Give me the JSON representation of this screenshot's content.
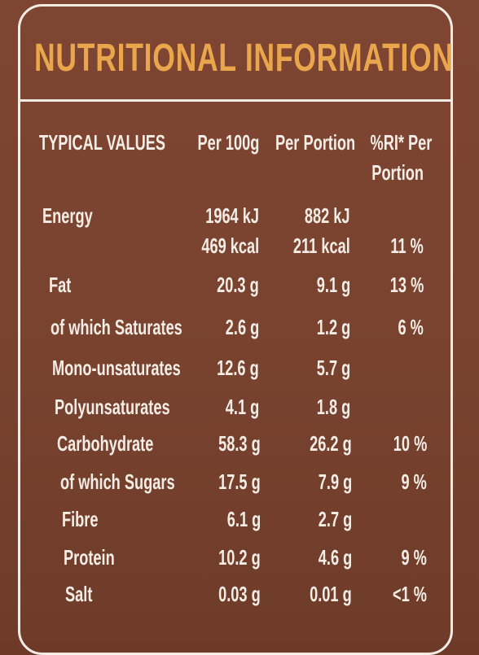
{
  "header": {
    "title": "NUTRITIONAL INFORMATION"
  },
  "table": {
    "columns": [
      "TYPICAL VALUES",
      "Per 100g",
      "Per Portion"
    ],
    "ri_header": [
      "%RI* Per",
      "Portion"
    ],
    "rows": [
      [
        "Energy",
        "1964 kJ",
        "882 kJ",
        null
      ],
      [
        null,
        "469 kcal",
        "211 kcal",
        "11 %"
      ],
      [
        "Fat",
        "20.3 g",
        "9.1 g",
        "13 %"
      ],
      [
        "of which Saturates",
        "2.6 g",
        "1.2 g",
        "6 %"
      ],
      [
        "Mono-unsaturates",
        "12.6 g",
        "5.7 g",
        null
      ],
      [
        "Polyunsaturates",
        "4.1 g",
        "1.8 g",
        null
      ],
      [
        "Carbohydrate",
        "58.3 g",
        "26.2 g",
        "10 %"
      ],
      [
        "of which Sugars",
        "17.5 g",
        "7.9 g",
        "9 %"
      ],
      [
        "Fibre",
        "6.1 g",
        "2.7 g",
        null
      ],
      [
        "Protein",
        "10.2 g",
        "4.6 g",
        "9 %"
      ],
      [
        "Salt",
        "0.03 g",
        "0.01 g",
        "<1 %"
      ]
    ]
  }
}
